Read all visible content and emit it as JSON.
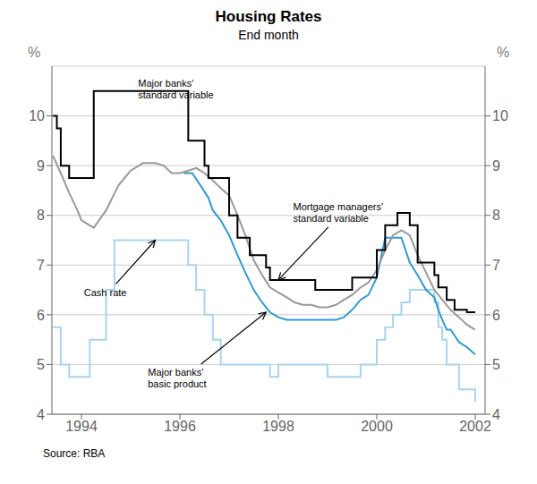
{
  "chart_data": {
    "type": "line",
    "title": "Housing Rates",
    "subtitle": "End month",
    "source": "Source: RBA",
    "ylabel": "%",
    "y2label": "%",
    "xlim": [
      1993.4,
      2002.2
    ],
    "xticks": [
      1994,
      1996,
      1998,
      2000,
      2002
    ],
    "ylim": [
      4,
      11
    ],
    "yticks": [
      4,
      5,
      6,
      7,
      8,
      9,
      10
    ],
    "y2lim": [
      4,
      11
    ],
    "y2ticks": [
      4,
      5,
      6,
      7,
      8,
      9,
      10
    ],
    "grid": true,
    "series": [
      {
        "name": "Cash rate",
        "color": "#a8d4ee",
        "line_style": "step",
        "x": [
          1993.42,
          1993.58,
          1993.75,
          1994.0,
          1994.17,
          1994.33,
          1994.5,
          1994.67,
          1994.83,
          1995.0,
          1995.33,
          1995.5,
          1995.75,
          1996.0,
          1996.17,
          1996.33,
          1996.5,
          1996.67,
          1996.83,
          1997.0,
          1997.25,
          1997.5,
          1997.67,
          1997.83,
          1998.0,
          1998.33,
          1998.5,
          1998.67,
          1998.83,
          1999.0,
          1999.25,
          1999.5,
          1999.67,
          1999.83,
          2000.0,
          2000.17,
          2000.33,
          2000.5,
          2000.67,
          2000.75,
          2001.0,
          2001.17,
          2001.25,
          2001.33,
          2001.42,
          2001.5,
          2001.67,
          2001.83,
          2002.0
        ],
        "values": [
          5.75,
          5.0,
          4.75,
          4.75,
          5.5,
          5.5,
          6.5,
          7.5,
          7.5,
          7.5,
          7.5,
          7.5,
          7.5,
          7.5,
          7.0,
          6.5,
          6.0,
          5.5,
          5.0,
          5.0,
          5.0,
          5.0,
          5.0,
          4.75,
          5.0,
          5.0,
          5.0,
          5.0,
          5.0,
          4.75,
          4.75,
          4.75,
          5.0,
          5.0,
          5.5,
          5.75,
          6.0,
          6.25,
          6.5,
          6.5,
          6.5,
          6.25,
          5.75,
          5.5,
          5.0,
          5.0,
          4.5,
          4.5,
          4.25
        ]
      },
      {
        "name": "Major banks'\nbasic product",
        "color": "#3399cc",
        "line_style": "solid",
        "x": [
          1996.08,
          1996.17,
          1996.25,
          1996.42,
          1996.58,
          1996.67,
          1996.83,
          1997.0,
          1997.17,
          1997.33,
          1997.5,
          1997.67,
          1997.83,
          1998.0,
          1998.17,
          1998.33,
          1998.5,
          1998.67,
          1998.83,
          1999.0,
          1999.17,
          1999.33,
          1999.5,
          1999.67,
          1999.83,
          2000.0,
          2000.17,
          2000.25,
          2000.33,
          2000.42,
          2000.5,
          2000.67,
          2000.83,
          2001.0,
          2001.17,
          2001.25,
          2001.33,
          2001.42,
          2001.5,
          2001.67,
          2001.83,
          2002.0
        ],
        "values": [
          8.85,
          8.85,
          8.85,
          8.6,
          8.35,
          8.1,
          7.9,
          7.6,
          7.2,
          6.85,
          6.5,
          6.25,
          6.05,
          5.95,
          5.9,
          5.9,
          5.9,
          5.9,
          5.9,
          5.9,
          5.9,
          5.95,
          6.1,
          6.3,
          6.4,
          6.75,
          7.55,
          7.55,
          7.55,
          7.55,
          7.55,
          7.05,
          6.8,
          6.5,
          6.35,
          6.1,
          5.9,
          5.7,
          5.7,
          5.45,
          5.35,
          5.2
        ]
      },
      {
        "name": "Mortgage managers'\nstandard variable",
        "color": "#999999",
        "line_style": "solid",
        "x": [
          1993.42,
          1993.58,
          1993.75,
          1993.92,
          1994.0,
          1994.25,
          1994.5,
          1994.75,
          1995.0,
          1995.25,
          1995.5,
          1995.67,
          1995.83,
          1996.0,
          1996.17,
          1996.33,
          1996.5,
          1996.67,
          1996.83,
          1997.0,
          1997.17,
          1997.33,
          1997.5,
          1997.67,
          1997.83,
          1998.0,
          1998.17,
          1998.33,
          1998.5,
          1998.67,
          1998.83,
          1999.0,
          1999.17,
          1999.33,
          1999.5,
          1999.67,
          1999.83,
          2000.0,
          2000.17,
          2000.33,
          2000.5,
          2000.67,
          2000.83,
          2001.0,
          2001.17,
          2001.33,
          2001.5,
          2001.67,
          2001.83,
          2002.0
        ],
        "values": [
          9.2,
          8.85,
          8.45,
          8.1,
          7.9,
          7.75,
          8.1,
          8.6,
          8.9,
          9.05,
          9.05,
          9.0,
          8.85,
          8.85,
          8.9,
          8.95,
          8.85,
          8.7,
          8.55,
          8.4,
          8.0,
          7.6,
          7.1,
          6.8,
          6.55,
          6.45,
          6.35,
          6.25,
          6.2,
          6.2,
          6.15,
          6.15,
          6.2,
          6.3,
          6.4,
          6.55,
          6.65,
          6.9,
          7.3,
          7.6,
          7.7,
          7.6,
          7.2,
          6.85,
          6.5,
          6.3,
          6.1,
          5.95,
          5.8,
          5.7
        ]
      },
      {
        "name": "Major banks'\nstandard variable",
        "color": "#000000",
        "line_style": "step",
        "x": [
          1993.42,
          1993.5,
          1993.58,
          1993.75,
          1993.92,
          1994.0,
          1994.25,
          1994.58,
          1994.75,
          1994.92,
          1995.25,
          1995.5,
          1995.75,
          1996.0,
          1996.17,
          1996.25,
          1996.42,
          1996.5,
          1996.58,
          1996.67,
          1996.83,
          1997.0,
          1997.17,
          1997.25,
          1997.42,
          1997.58,
          1997.75,
          1997.83,
          1998.0,
          1998.17,
          1998.25,
          1998.5,
          1998.75,
          1999.0,
          1999.25,
          1999.5,
          1999.58,
          1999.75,
          1999.83,
          2000.0,
          2000.08,
          2000.17,
          2000.25,
          2000.33,
          2000.42,
          2000.5,
          2000.67,
          2000.83,
          2001.0,
          2001.17,
          2001.25,
          2001.42,
          2001.5,
          2001.58,
          2001.67,
          2001.83,
          2002.0
        ],
        "values": [
          10.0,
          9.75,
          9.0,
          8.75,
          8.75,
          8.75,
          10.5,
          10.5,
          10.5,
          10.5,
          10.5,
          10.5,
          10.5,
          10.5,
          9.5,
          9.5,
          9.5,
          9.0,
          8.75,
          8.75,
          8.75,
          8.0,
          7.55,
          7.55,
          7.2,
          7.2,
          6.95,
          6.7,
          6.7,
          6.7,
          6.7,
          6.7,
          6.5,
          6.5,
          6.5,
          6.75,
          6.75,
          6.75,
          6.75,
          7.3,
          7.3,
          7.8,
          7.8,
          7.8,
          8.05,
          8.05,
          7.8,
          7.05,
          7.05,
          6.8,
          6.55,
          6.3,
          6.3,
          6.1,
          6.1,
          6.05,
          6.05
        ]
      }
    ],
    "annotations": [
      {
        "text": "Major banks'\nstandard variable",
        "xytext": [
          1995.15,
          10.55
        ]
      },
      {
        "text": "Mortgage managers'\nstandard variable",
        "xy": [
          1998.0,
          6.7
        ],
        "xytext": [
          1998.3,
          8.05
        ]
      },
      {
        "text": "Cash rate",
        "xy": [
          1995.5,
          7.5
        ],
        "xytext": [
          1994.05,
          6.45
        ]
      },
      {
        "text": "Major banks'\nbasic product",
        "xy": [
          1997.75,
          6.05
        ],
        "xytext": [
          1995.35,
          4.72
        ]
      }
    ]
  }
}
